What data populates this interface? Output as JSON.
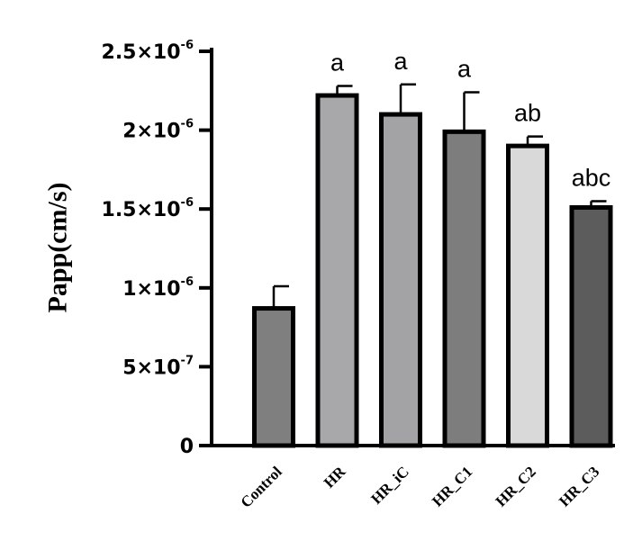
{
  "chart_data": {
    "type": "bar",
    "title": "",
    "xlabel": "",
    "ylabel": "Papp(cm/s)",
    "ylim": [
      0,
      2.5e-06
    ],
    "grid": false,
    "categories": [
      "Control",
      "HR",
      "HR_iC",
      "HR_C1",
      "HR_C2",
      "HR_C3"
    ],
    "values": [
      8.7e-07,
      2.22e-06,
      2.1e-06,
      1.99e-06,
      1.9e-06,
      1.51e-06
    ],
    "errors": [
      1.4e-07,
      6e-08,
      1.9e-07,
      2.5e-07,
      6e-08,
      4e-08
    ],
    "significance": [
      "",
      "a",
      "a",
      "a",
      "ab",
      "abc"
    ],
    "colors": [
      "#7f7f7f",
      "#a8a8ab",
      "#a3a3a6",
      "#7d7d7d",
      "#d9d9d9",
      "#5c5c5c"
    ],
    "yticks": [
      {
        "value": 0,
        "base": "0",
        "exp": ""
      },
      {
        "value": 5e-07,
        "base": "5×10",
        "exp": "-7"
      },
      {
        "value": 1e-06,
        "base": "1×10",
        "exp": "-6"
      },
      {
        "value": 1.5e-06,
        "base": "1.5×10",
        "exp": "-6"
      },
      {
        "value": 2e-06,
        "base": "2×10",
        "exp": "-6"
      },
      {
        "value": 2.5e-06,
        "base": "2.5×10",
        "exp": "-6"
      }
    ]
  }
}
